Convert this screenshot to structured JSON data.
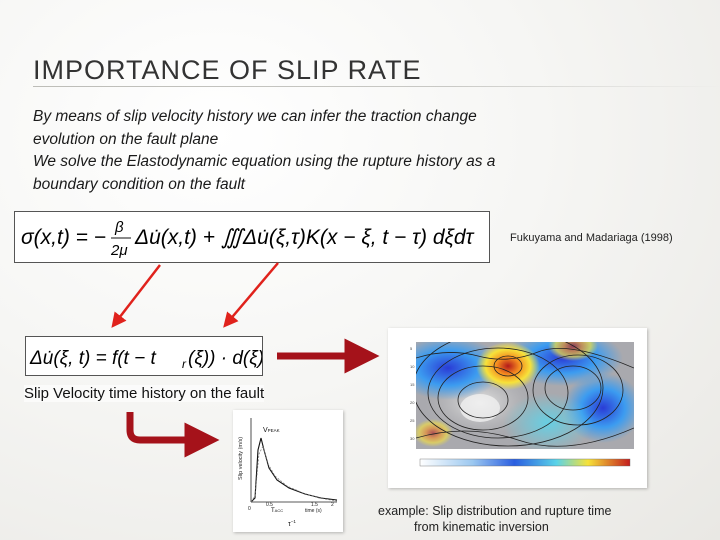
{
  "slide": {
    "title": "IMPORTANCE OF SLIP RATE",
    "body_lines": [
      "By means of slip velocity history we can infer the traction change",
      "evolution on the fault plane",
      "We solve the Elastodynamic equation using the rupture history as a",
      "boundary condition on the fault"
    ],
    "reference": "Fukuyama and Madariaga (1998)",
    "caption_slip_velocity": "Slip Velocity time history on the fault",
    "caption_example_line1": "example: Slip distribution and rupture time",
    "caption_example_line2": "from kinematic inversion"
  },
  "equations": {
    "traction": "σ(x,t) = −(β/2μ)·Δu̇(x,t) + ∭ Δu̇(ξ,τ)·K(x−ξ, t−τ) dξ dτ",
    "slip_velocity": "Δu̇(ξ,t) = f(t − t_r(ξ))·d(ξ)"
  },
  "velocity_plot": {
    "ylabel": "Slip velocity (m/s)",
    "xlabel": "time (s)",
    "peak_label": "V",
    "peak_sub": "PEAK",
    "tacc_label": "T",
    "tacc_sub": "ACC",
    "tau_label": "τ",
    "tau_sup": "−1",
    "x_ticks": [
      "0",
      "0.5",
      "1.5",
      "2"
    ]
  },
  "colors": {
    "arrow_red": "#e0221c",
    "arrow_darkred": "#a5121a"
  }
}
